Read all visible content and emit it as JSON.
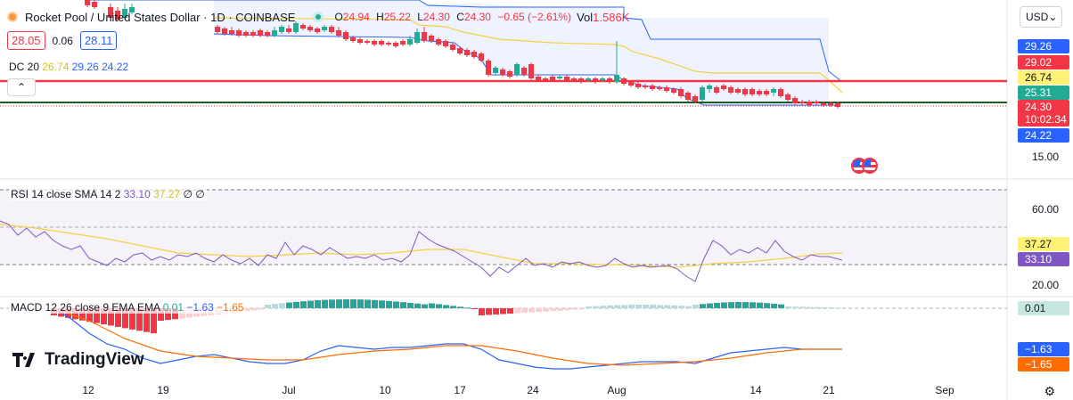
{
  "header": {
    "title": "Rocket Pool / United States Dollar · 1D · COINBASE",
    "ohlc": [
      {
        "k": "O",
        "v": "24.94"
      },
      {
        "k": "H",
        "v": "25.22"
      },
      {
        "k": "L",
        "v": "24.30"
      },
      {
        "k": "C",
        "v": "24.30"
      }
    ],
    "change": "−0.65 (−2.61%)",
    "vol_label": "Vol",
    "vol_value": "1.586K"
  },
  "quote": {
    "bid": "28.05",
    "spread": "0.06",
    "ask": "28.11"
  },
  "dc": {
    "label": "DC 20",
    "mid": "26.74",
    "upper": "29.26",
    "lower": "24.22"
  },
  "currency": {
    "selected": "USD"
  },
  "price_axis": {
    "tags": [
      {
        "label": "29.26",
        "color": "#2962ff"
      },
      {
        "label": "29.02",
        "color": "#f23645"
      },
      {
        "label": "26.74",
        "color": "#fff176"
      },
      {
        "label": "25.31",
        "color": "#22ab94"
      },
      {
        "label": "24.30",
        "color": "#f23645"
      },
      {
        "label": "24.22",
        "color": "#2962ff"
      }
    ],
    "countdown": "10:02:34",
    "level_label": "15.00"
  },
  "rsi": {
    "legend_label": "RSI 14 close SMA 14 2",
    "value": "33.10",
    "sma": "37.27",
    "extra1": "∅",
    "extra2": "∅",
    "axis_top": "60.00",
    "axis_bottom": "20.00",
    "tag_sma": "37.27",
    "tag_rsi": "33.10"
  },
  "macd": {
    "legend_label": "MACD 12 26 close 9 EMA EMA",
    "hist": "0.01",
    "macd": "−1.63",
    "signal": "−1.65",
    "tag_hist": "0.01",
    "tag_macd": "−1.63",
    "tag_signal": "−1.65"
  },
  "time_axis": [
    "12",
    "19",
    "Jul",
    "10",
    "17",
    "24",
    "Aug",
    "14",
    "21",
    "Sep"
  ],
  "branding": {
    "logo_text": "TradingView"
  },
  "colors": {
    "up": "#22ab94",
    "down": "#f23645",
    "dc_band": "#2962ff",
    "dc_mid": "#f5d142",
    "rsi": "#7e57c2",
    "macd": "#2962ff",
    "signal": "#ff6d00"
  }
}
